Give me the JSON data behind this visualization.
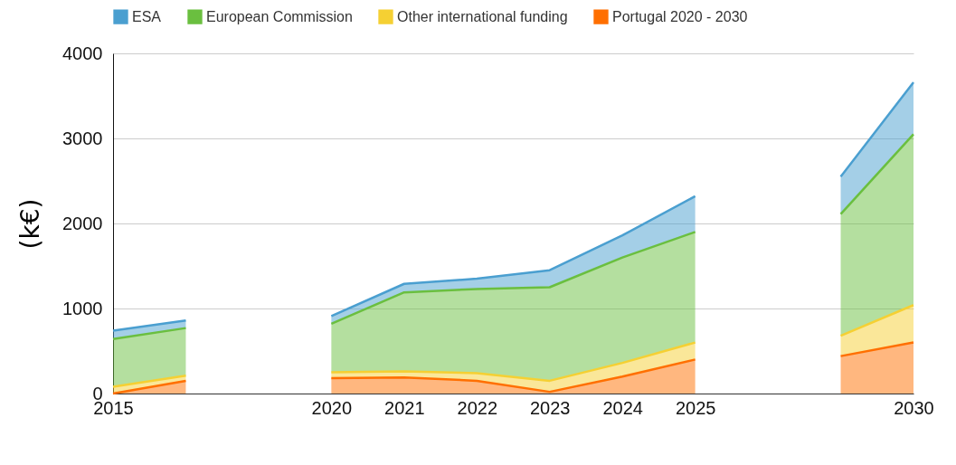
{
  "chart_data": {
    "type": "area",
    "stacked": true,
    "ylabel": "(k€)",
    "categories": [
      "2015",
      null,
      null,
      "2020",
      "2021",
      "2022",
      "2023",
      "2024",
      "2025",
      null,
      null,
      "2030"
    ],
    "series": [
      {
        "name": "Portugal 2020 - 2030",
        "color": "#ff6f00",
        "values": [
          0,
          150,
          null,
          180,
          190,
          150,
          20,
          200,
          400,
          null,
          440,
          600
        ]
      },
      {
        "name": "Other international funding",
        "color": "#f5d033",
        "values": [
          80,
          60,
          null,
          70,
          70,
          90,
          130,
          160,
          200,
          null,
          240,
          440
        ]
      },
      {
        "name": "European Commission",
        "color": "#6abf3f",
        "values": [
          560,
          560,
          null,
          570,
          930,
          990,
          1100,
          1240,
          1300,
          null,
          1430,
          2010
        ]
      },
      {
        "name": "ESA",
        "color": "#4a9fd0",
        "values": [
          100,
          90,
          null,
          90,
          100,
          120,
          200,
          260,
          420,
          null,
          440,
          610
        ]
      }
    ],
    "ylim": [
      0,
      4000
    ],
    "yticks": [
      0,
      1000,
      2000,
      3000,
      4000
    ],
    "grid": "y",
    "legend": "top"
  }
}
